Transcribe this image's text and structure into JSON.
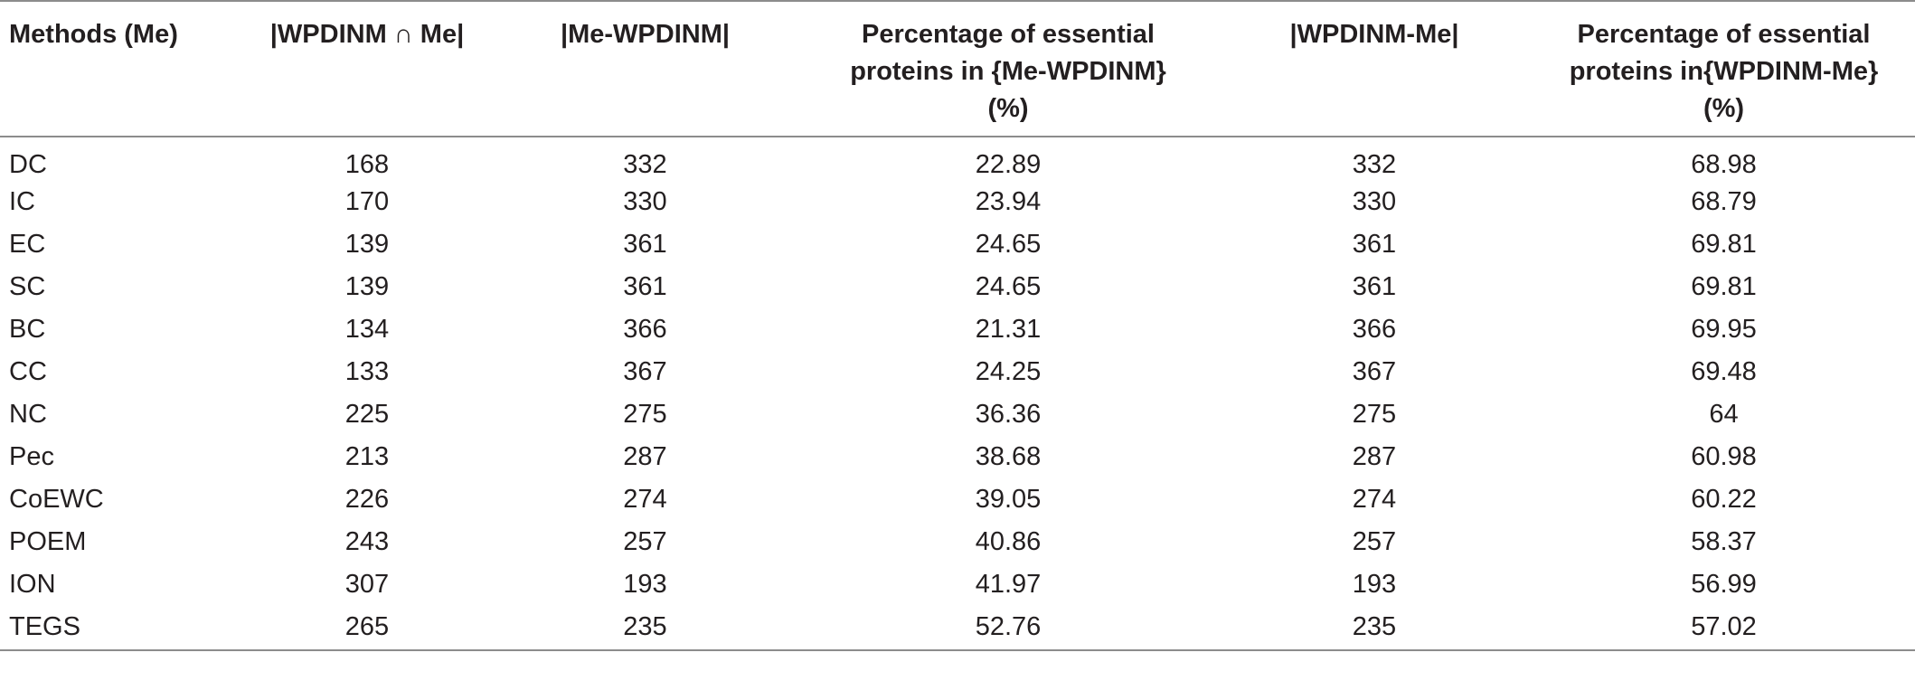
{
  "table": {
    "headers": {
      "methods": "Methods (Me)",
      "intersection": "|WPDINM ∩ Me|",
      "me_minus_wpdinm": "|Me-WPDINM|",
      "pct_me_minus_wpdinm": [
        "Percentage of essential",
        "proteins in {Me-WPDINM}",
        "(%)"
      ],
      "wpdinm_minus_me": "|WPDINM-Me|",
      "pct_wpdinm_minus_me": [
        "Percentage of essential",
        "proteins in{WPDINM-Me}",
        "(%)"
      ]
    },
    "rows": [
      {
        "method": "DC",
        "intersection": "168",
        "me_minus_wpdinm": "332",
        "pct_me_minus_wpdinm": "22.89",
        "wpdinm_minus_me": "332",
        "pct_wpdinm_minus_me": "68.98"
      },
      {
        "method": "IC",
        "intersection": "170",
        "me_minus_wpdinm": "330",
        "pct_me_minus_wpdinm": "23.94",
        "wpdinm_minus_me": "330",
        "pct_wpdinm_minus_me": "68.79"
      },
      {
        "method": "EC",
        "intersection": "139",
        "me_minus_wpdinm": "361",
        "pct_me_minus_wpdinm": "24.65",
        "wpdinm_minus_me": "361",
        "pct_wpdinm_minus_me": "69.81"
      },
      {
        "method": "SC",
        "intersection": "139",
        "me_minus_wpdinm": "361",
        "pct_me_minus_wpdinm": "24.65",
        "wpdinm_minus_me": "361",
        "pct_wpdinm_minus_me": "69.81"
      },
      {
        "method": "BC",
        "intersection": "134",
        "me_minus_wpdinm": "366",
        "pct_me_minus_wpdinm": "21.31",
        "wpdinm_minus_me": "366",
        "pct_wpdinm_minus_me": "69.95"
      },
      {
        "method": "CC",
        "intersection": "133",
        "me_minus_wpdinm": "367",
        "pct_me_minus_wpdinm": "24.25",
        "wpdinm_minus_me": "367",
        "pct_wpdinm_minus_me": "69.48"
      },
      {
        "method": "NC",
        "intersection": "225",
        "me_minus_wpdinm": "275",
        "pct_me_minus_wpdinm": "36.36",
        "wpdinm_minus_me": "275",
        "pct_wpdinm_minus_me": "64"
      },
      {
        "method": "Pec",
        "intersection": "213",
        "me_minus_wpdinm": "287",
        "pct_me_minus_wpdinm": "38.68",
        "wpdinm_minus_me": "287",
        "pct_wpdinm_minus_me": "60.98"
      },
      {
        "method": "CoEWC",
        "intersection": "226",
        "me_minus_wpdinm": "274",
        "pct_me_minus_wpdinm": "39.05",
        "wpdinm_minus_me": "274",
        "pct_wpdinm_minus_me": "60.22"
      },
      {
        "method": "POEM",
        "intersection": "243",
        "me_minus_wpdinm": "257",
        "pct_me_minus_wpdinm": "40.86",
        "wpdinm_minus_me": "257",
        "pct_wpdinm_minus_me": "58.37"
      },
      {
        "method": "ION",
        "intersection": "307",
        "me_minus_wpdinm": "193",
        "pct_me_minus_wpdinm": "41.97",
        "wpdinm_minus_me": "193",
        "pct_wpdinm_minus_me": "56.99"
      },
      {
        "method": "TEGS",
        "intersection": "265",
        "me_minus_wpdinm": "235",
        "pct_me_minus_wpdinm": "52.76",
        "wpdinm_minus_me": "235",
        "pct_wpdinm_minus_me": "57.02"
      }
    ]
  }
}
